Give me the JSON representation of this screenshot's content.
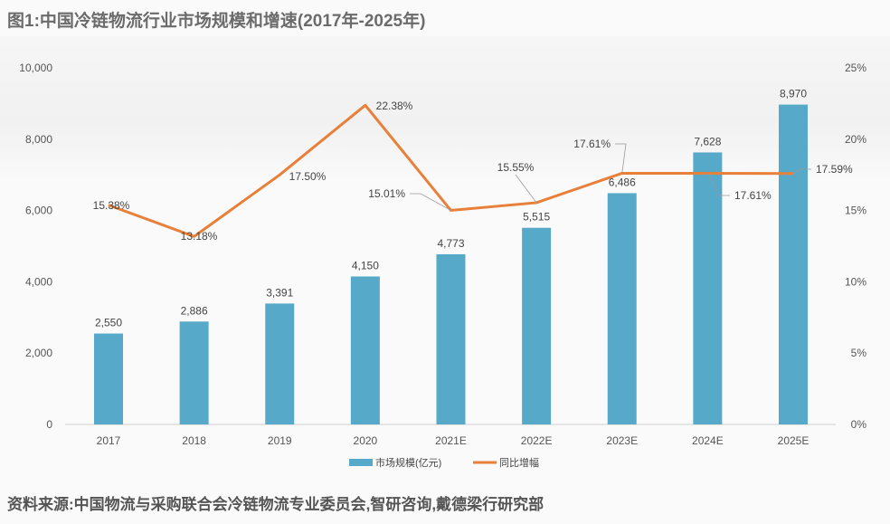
{
  "title": "图1:中国冷链物流行业市场规模和增速(2017年-2025年)",
  "source": "资料来源:中国物流与采购联合会冷链物流专业委员会,智研咨询,戴德梁行研究部",
  "chart_data": {
    "type": "bar+line",
    "title": "图1:中国冷链物流行业市场规模和增速(2017年-2025年)",
    "categories": [
      "2017",
      "2018",
      "2019",
      "2020",
      "2021E",
      "2022E",
      "2023E",
      "2024E",
      "2025E"
    ],
    "series": [
      {
        "name": "市场规模(亿元)",
        "type": "bar",
        "axis": "left",
        "color": "#56a9c9",
        "values": [
          2550,
          2886,
          3391,
          4150,
          4773,
          5515,
          6486,
          7628,
          8970
        ],
        "labels": [
          "2,550",
          "2,886",
          "3,391",
          "4,150",
          "4,773",
          "5,515",
          "6,486",
          "7,628",
          "8,970"
        ]
      },
      {
        "name": "同比增幅",
        "type": "line",
        "axis": "right",
        "color": "#e8803a",
        "values": [
          15.38,
          13.18,
          17.5,
          22.38,
          15.01,
          15.55,
          17.61,
          17.61,
          17.59
        ],
        "labels": [
          "15.38%",
          "13.18%",
          "17.50%",
          "22.38%",
          "15.01%",
          "15.55%",
          "17.61%",
          "17.61%",
          "17.59%"
        ]
      }
    ],
    "y_left": {
      "range": [
        0,
        10000
      ],
      "ticks": [
        "0",
        "2,000",
        "4,000",
        "6,000",
        "8,000",
        "10,000"
      ]
    },
    "y_right": {
      "range": [
        0,
        25
      ],
      "ticks": [
        "0%",
        "5%",
        "10%",
        "15%",
        "20%",
        "25%"
      ]
    },
    "grid": false,
    "legend": "bottom"
  }
}
